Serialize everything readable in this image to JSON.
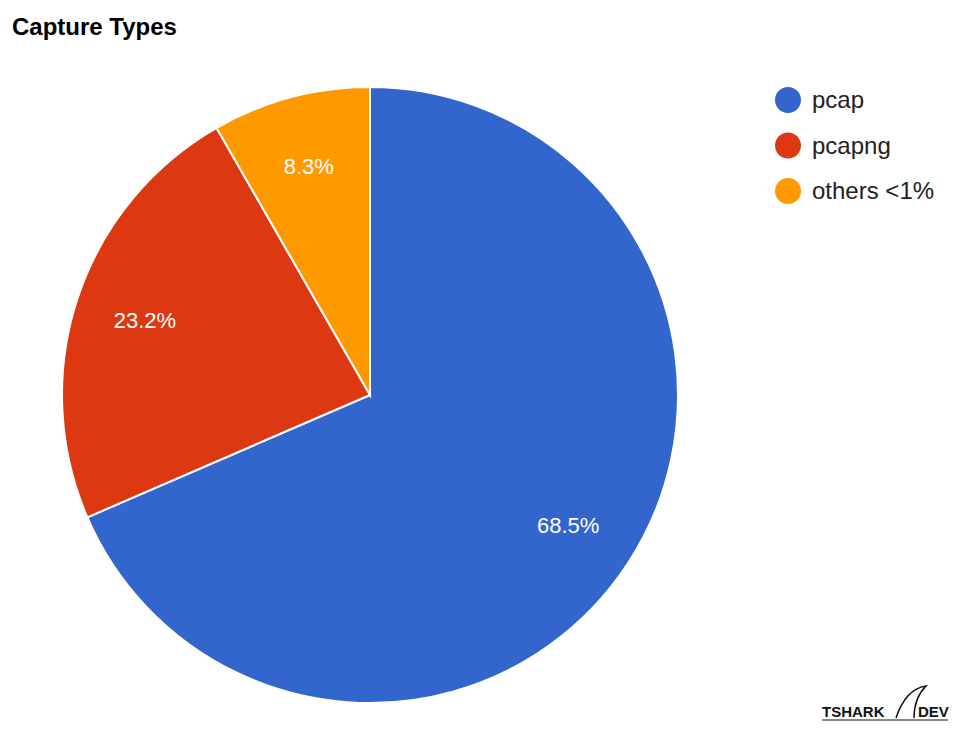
{
  "chart_data": {
    "type": "pie",
    "title": "Capture Types",
    "categories": [
      "pcap",
      "pcapng",
      "others <1%"
    ],
    "values": [
      68.5,
      23.2,
      8.3
    ],
    "value_labels": [
      "68.5%",
      "23.2%",
      "8.3%"
    ],
    "colors": [
      "#3366cc",
      "#dc3912",
      "#ff9900"
    ],
    "data_labels": true,
    "legend": "right"
  },
  "logo": {
    "left": "TSHARK",
    "right": "DEV"
  }
}
